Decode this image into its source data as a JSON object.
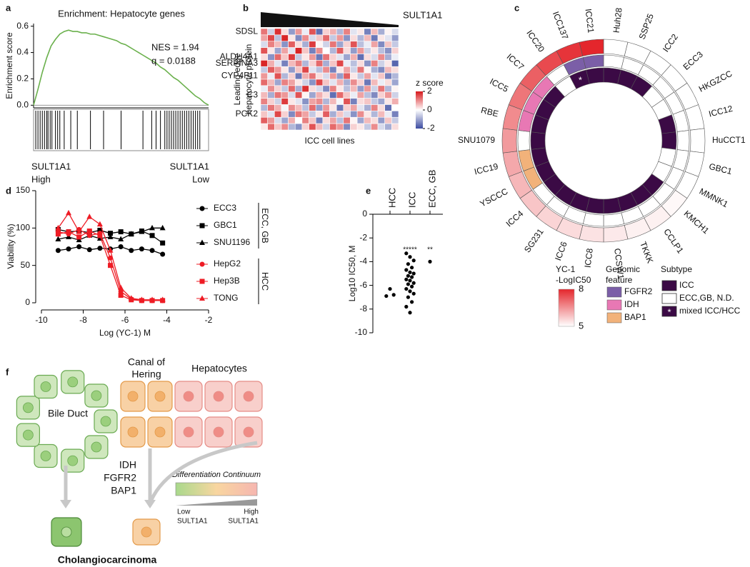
{
  "chart_data": [
    {
      "type": "line",
      "label": "a",
      "title": "Enrichment: Hepatocyte genes",
      "y_label": "Enrichment score",
      "values": [
        0,
        0.12,
        0.25,
        0.36,
        0.45,
        0.5,
        0.54,
        0.56,
        0.57,
        0.56,
        0.56,
        0.55,
        0.55,
        0.54,
        0.54,
        0.53,
        0.52,
        0.51,
        0.5,
        0.49,
        0.47,
        0.46,
        0.44,
        0.42,
        0.4,
        0.38,
        0.36,
        0.34,
        0.32,
        0.29,
        0.27,
        0.24,
        0.21,
        0.19,
        0.16,
        0.13,
        0.1,
        0.07,
        0.05,
        0.02,
        0
      ],
      "color": "#6ab04c",
      "ylim": [
        -0.02,
        0.62
      ],
      "yticks": [
        {
          "value": 0,
          "label": "0.0"
        },
        0.2,
        0.4,
        0.6
      ],
      "annotations": [
        "NES = 1.94",
        "q = 0.0188"
      ],
      "hits": [
        0.5,
        1,
        1.5,
        2,
        2.5,
        3,
        3.3,
        3.8,
        4.2,
        5,
        5.5,
        6,
        7,
        8.5,
        10,
        13,
        16,
        20,
        25,
        27,
        28,
        29,
        30,
        30.5,
        31,
        31.5,
        32,
        32.5,
        33,
        33.5,
        34,
        34.5,
        35,
        35.5,
        36,
        36.5,
        37,
        37.5,
        38
      ],
      "left_label": [
        "SULT1A1",
        "High"
      ],
      "right_label": [
        "SULT1A1",
        "Low"
      ]
    },
    {
      "type": "heatmap",
      "label": "b",
      "sort_label": "SULT1A1",
      "y_label": [
        "Leading edge",
        "hepatocyte protein"
      ],
      "x_label": "ICC cell lines",
      "rows": [
        "SDSL",
        null,
        null,
        null,
        "ALDH4A1",
        "SERPINA3",
        null,
        "CYP4F11",
        null,
        null,
        "C3",
        null,
        null,
        "PCK2",
        null,
        null
      ],
      "values": [
        [
          1.2,
          -0.5,
          1.8,
          0.3,
          -1.1,
          0.9,
          -0.2,
          1.5,
          -1.6,
          0.4,
          0.7,
          -0.8,
          1.1,
          -0.3,
          0.2,
          -1.4,
          0.6,
          -0.9,
          0.1,
          -0.4
        ],
        [
          0.8,
          1.6,
          -0.7,
          1.9,
          0.2,
          -1.3,
          1.0,
          -0.4,
          0.5,
          1.3,
          -0.6,
          0.9,
          -1.2,
          0.3,
          -0.8,
          0.6,
          -1.5,
          0.2,
          -0.3,
          -1.1
        ],
        [
          -0.4,
          1.1,
          0.6,
          -1.2,
          1.4,
          0.3,
          -0.9,
          1.7,
          0.1,
          -0.5,
          1.2,
          -1.0,
          0.4,
          1.5,
          -0.7,
          -0.2,
          0.8,
          -1.3,
          0.5,
          -0.6
        ],
        [
          1.5,
          0.2,
          -1.0,
          0.8,
          -0.3,
          1.9,
          0.5,
          -1.4,
          1.0,
          0.0,
          -0.8,
          1.4,
          0.3,
          -1.1,
          0.9,
          -0.5,
          0.2,
          -0.7,
          -1.2,
          0.4
        ],
        [
          0.3,
          -1.2,
          1.3,
          0.5,
          1.7,
          -0.6,
          0.2,
          0.9,
          -1.5,
          1.2,
          0.4,
          -0.3,
          -1.0,
          0.7,
          -1.6,
          0.3,
          -0.4,
          1.0,
          -0.9,
          -0.2
        ],
        [
          1.9,
          0.7,
          -0.3,
          -1.4,
          0.6,
          1.1,
          -0.8,
          0.4,
          1.3,
          -0.9,
          0.5,
          1.6,
          -0.2,
          -0.7,
          0.3,
          -1.2,
          1.1,
          -0.5,
          0.2,
          -1.7
        ],
        [
          -0.6,
          1.4,
          0.9,
          0.2,
          -1.1,
          0.5,
          1.6,
          -0.3,
          -0.7,
          1.0,
          -1.4,
          0.2,
          0.8,
          -0.5,
          1.2,
          0.1,
          -0.9,
          -1.3,
          0.6,
          0.3
        ],
        [
          0.9,
          -0.2,
          1.5,
          -0.8,
          0.4,
          -1.5,
          0.7,
          1.2,
          0.3,
          -0.4,
          0.9,
          -1.1,
          1.4,
          0.2,
          -0.6,
          0.8,
          -0.3,
          0.5,
          -1.4,
          -0.8
        ],
        [
          1.3,
          0.6,
          -1.0,
          1.1,
          0.8,
          0.2,
          -0.5,
          -1.2,
          1.6,
          0.5,
          -0.3,
          0.7,
          -0.9,
          1.0,
          0.4,
          -1.5,
          0.6,
          -0.2,
          0.3,
          -1.0
        ],
        [
          -0.2,
          1.0,
          0.4,
          -0.6,
          1.3,
          -0.9,
          1.8,
          0.3,
          -0.4,
          -1.3,
          1.1,
          0.2,
          -0.7,
          0.6,
          -1.1,
          0.9,
          -0.5,
          1.2,
          -0.8,
          0.1
        ],
        [
          0.6,
          -0.9,
          1.2,
          0.9,
          -0.4,
          1.5,
          0.1,
          -1.0,
          0.7,
          0.3,
          -1.6,
          1.3,
          0.5,
          -0.2,
          0.8,
          -0.7,
          -1.3,
          0.4,
          0.9,
          -0.5
        ],
        [
          1.1,
          0.4,
          -0.5,
          1.7,
          0.2,
          -0.3,
          -1.2,
          0.8,
          1.0,
          -0.8,
          0.6,
          -0.1,
          1.5,
          -1.4,
          0.3,
          0.5,
          -0.6,
          -1.0,
          0.2,
          0.7
        ],
        [
          -0.8,
          1.2,
          0.7,
          -0.1,
          1.0,
          0.6,
          -0.7,
          1.3,
          -1.1,
          0.9,
          0.2,
          -1.5,
          0.4,
          0.8,
          -0.3,
          -0.9,
          1.1,
          0.3,
          -1.6,
          0.0
        ],
        [
          0.5,
          -0.3,
          1.6,
          0.4,
          -1.3,
          1.2,
          0.8,
          -0.6,
          0.2,
          1.4,
          -0.9,
          0.5,
          -0.4,
          -1.2,
          1.0,
          0.2,
          -0.8,
          0.6,
          -0.2,
          -1.4
        ],
        [
          1.4,
          0.9,
          -0.4,
          -1.0,
          0.7,
          0.0,
          1.1,
          0.5,
          -1.4,
          0.3,
          0.8,
          -0.7,
          1.2,
          0.1,
          -1.0,
          0.6,
          0.3,
          -1.1,
          0.5,
          -0.6
        ],
        [
          0.2,
          1.3,
          0.5,
          1.0,
          -0.8,
          -1.2,
          0.4,
          1.5,
          0.6,
          -0.5,
          1.3,
          0.9,
          -1.3,
          0.4,
          0.2,
          -0.6,
          1.0,
          -0.4,
          -0.9,
          0.3
        ]
      ],
      "colorbar_title": "z score",
      "colors": [
        "#3b4ba0",
        "#ffffff",
        "#d7191c"
      ],
      "zlim": [
        -2,
        2
      ],
      "zticks": [
        2,
        0,
        -2
      ]
    },
    {
      "type": "circular_heatmap",
      "label": "c",
      "categories": [
        "Huh28",
        "SSP25",
        "ICC2",
        "ECC3",
        "HKGZCC",
        "ICC12",
        "HuCCT1",
        "GBC1",
        "MMNK1",
        "KMCH1",
        "CCLP1",
        "TKKK",
        "CCSW1",
        "ICC8",
        "ICC6",
        "SG231",
        "ICC4",
        "YSCCC",
        "ICC19",
        "SNU1079",
        "RBE",
        "ICC5",
        "ICC7",
        "ICC20",
        "ICC137",
        "ICC21"
      ],
      "ic50": {
        "title": [
          "YC-1",
          "-LogIC50"
        ],
        "values": [
          5,
          5,
          5,
          5,
          5,
          5,
          5,
          5,
          5,
          5.1,
          5.2,
          5.2,
          5.3,
          5.4,
          5.5,
          5.6,
          5.8,
          6,
          6.2,
          6.4,
          6.6,
          6.9,
          7.2,
          7.5,
          7.8,
          8
        ],
        "lim": [
          5,
          8
        ],
        "ticks": [
          8,
          5
        ],
        "colors": [
          "#ffffff",
          "#e4262c"
        ]
      },
      "genomic": {
        "title": [
          "Genomic",
          "feature"
        ],
        "values": [
          null,
          null,
          null,
          null,
          null,
          null,
          null,
          null,
          null,
          null,
          null,
          null,
          null,
          null,
          null,
          null,
          null,
          "BAP1",
          "BAP1",
          null,
          "IDH",
          "IDH",
          "IDH",
          null,
          "FGFR2",
          "FGFR2"
        ],
        "legend": [
          {
            "name": "FGFR2",
            "color": "#7b5ea7"
          },
          {
            "name": "IDH",
            "color": "#e878b4"
          },
          {
            "name": "BAP1",
            "color": "#f2b27a"
          }
        ]
      },
      "subtype": {
        "title": "Subtype",
        "values": [
          "ICC",
          "ICC",
          "ICC",
          "ECC,GB, N.D.",
          "ECC,GB, N.D.",
          "ICC",
          "ICC",
          "ECC,GB, N.D.",
          "ECC,GB, N.D.",
          "ICC",
          "ICC",
          "ICC",
          "ICC",
          "ICC",
          "ICC",
          "ICC",
          "ICC",
          "ICC",
          "ICC",
          "ICC",
          "ICC",
          "ICC",
          "ICC",
          "ECC,GB, N.D.",
          "mixed ICC/HCC",
          "ICC"
        ],
        "legend": [
          {
            "name": "ICC",
            "color": "#3b0a45"
          },
          {
            "name": "ECC,GB, N.D.",
            "color": "#ffffff"
          },
          {
            "name": "mixed ICC/HCC",
            "color": "#3b0a45",
            "symbol": "*"
          }
        ]
      }
    },
    {
      "type": "line",
      "label": "d",
      "y_label": "Viability (%)",
      "x_label": "Log (YC-1) M",
      "x": [
        -9.2,
        -8.7,
        -8.2,
        -7.7,
        -7.2,
        -6.7,
        -6.2,
        -5.7,
        -5.2,
        -4.7,
        -4.2
      ],
      "series": [
        {
          "name": "ECC3",
          "group": "ECC, GB",
          "color": "#000000",
          "marker": "circle",
          "values": [
            70,
            72,
            75,
            71,
            73,
            72,
            75,
            70,
            72,
            70,
            65
          ]
        },
        {
          "name": "GBC1",
          "group": "ECC, GB",
          "color": "#000000",
          "marker": "square",
          "values": [
            98,
            95,
            96,
            94,
            97,
            93,
            95,
            92,
            96,
            90,
            80
          ]
        },
        {
          "name": "SNU1196",
          "group": "ECC, GB",
          "color": "#000000",
          "marker": "triangle",
          "values": [
            85,
            88,
            84,
            90,
            86,
            88,
            85,
            92,
            95,
            100,
            100
          ]
        },
        {
          "name": "HepG2",
          "group": "HCC",
          "color": "#ee1c25",
          "marker": "circle",
          "values": [
            95,
            92,
            98,
            90,
            93,
            60,
            15,
            5,
            3,
            3,
            3
          ]
        },
        {
          "name": "Hep3B",
          "group": "HCC",
          "color": "#ee1c25",
          "marker": "square",
          "values": [
            92,
            95,
            88,
            96,
            90,
            50,
            10,
            4,
            3,
            3,
            3
          ]
        },
        {
          "name": "TONG",
          "group": "HCC",
          "color": "#ee1c25",
          "marker": "triangle",
          "values": [
            100,
            120,
            95,
            115,
            105,
            70,
            20,
            6,
            4,
            4,
            4
          ]
        }
      ],
      "xlim": [
        -10,
        -2
      ],
      "xticks": [
        -10,
        -8,
        -6,
        -4,
        -2
      ],
      "ylim": [
        0,
        150
      ],
      "yticks": [
        0,
        50,
        100,
        150
      ]
    },
    {
      "type": "strip",
      "label": "e",
      "y_label": "Log10 IC50, M",
      "categories": [
        "HCC",
        "ICC",
        "ECC, GB"
      ],
      "values": [
        [
          -6.9,
          -6.3,
          -6.8
        ],
        [
          -3.3,
          -3.6,
          -3.9,
          -4.2,
          -4.5,
          -4.7,
          -4.9,
          -5.0,
          -5.2,
          -5.3,
          -5.5,
          -5.6,
          -5.8,
          -5.9,
          -6.1,
          -6.3,
          -6.5,
          -6.7,
          -7.0,
          -7.4,
          -7.8,
          -8.3
        ],
        [
          -4.0
        ]
      ],
      "annotations": [
        null,
        "*****",
        "**"
      ],
      "color": "#000000",
      "ylim": [
        -10,
        0
      ],
      "yticks": [
        0,
        -2,
        -4,
        -6,
        -8,
        -10
      ]
    }
  ],
  "diagram": {
    "label": "f",
    "bile_duct": "Bile Duct",
    "canal": [
      "Canal of",
      "Hering"
    ],
    "hepatocytes": "Hepatocytes",
    "drivers": [
      "IDH",
      "FGFR2",
      "BAP1"
    ],
    "continuum": "Differentiation Continuum",
    "low": [
      "Low",
      "SULT1A1"
    ],
    "high": [
      "High",
      "SULT1A1"
    ],
    "outcome": "Cholangiocarcinoma"
  }
}
